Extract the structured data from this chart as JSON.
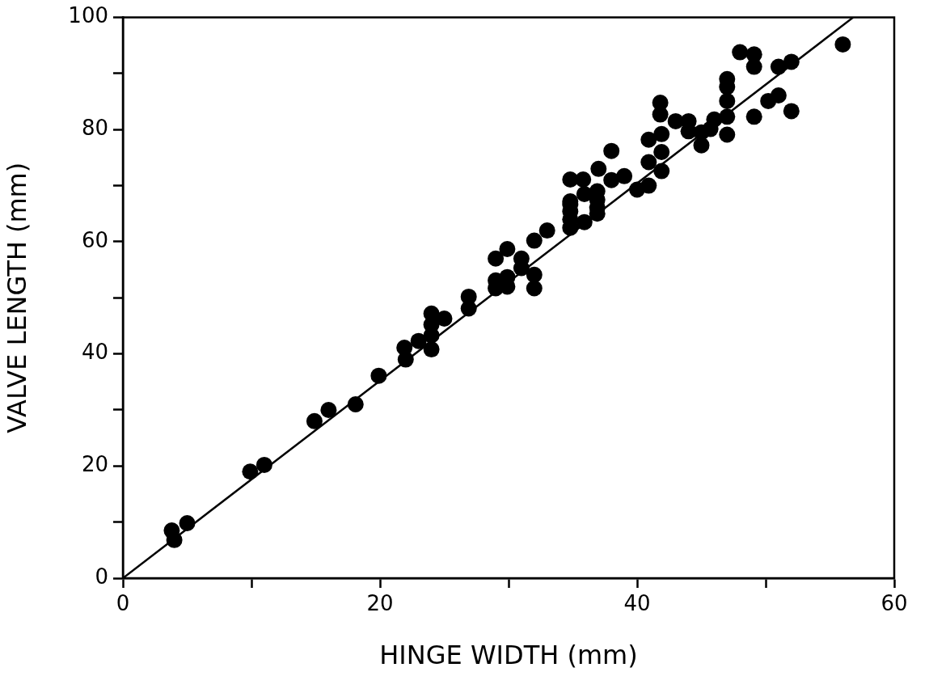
{
  "chart_data": {
    "type": "scatter",
    "xlabel": "HINGE WIDTH (mm)",
    "ylabel": "VALVE LENGTH (mm)",
    "xlim": [
      0,
      60
    ],
    "ylim": [
      0,
      100
    ],
    "xticks": [
      0,
      {
        "value": 10,
        "label": null
      },
      20,
      {
        "value": 30,
        "label": null
      },
      40,
      {
        "value": 50,
        "label": null
      },
      60
    ],
    "yticks": [
      0,
      {
        "value": 10,
        "label": null
      },
      20,
      {
        "value": 30,
        "label": null
      },
      40,
      {
        "value": 50,
        "label": null
      },
      60,
      {
        "value": 70,
        "label": null
      },
      80,
      {
        "value": 90,
        "label": null
      },
      100
    ],
    "grid": false,
    "legend": false,
    "marker": "circle",
    "series": [
      {
        "color": "#000000",
        "x": [
          3.8,
          4.0,
          5.0,
          9.9,
          11.0,
          14.9,
          16.0,
          18.1,
          19.9,
          21.9,
          22.0,
          23.0,
          24.0,
          24.0,
          24.0,
          24.0,
          25.0,
          26.9,
          26.9,
          29.0,
          29.0,
          29.0,
          29.9,
          29.9,
          29.9,
          31.0,
          31.0,
          32.0,
          32.0,
          32.0,
          33.0,
          34.8,
          34.8,
          34.8,
          34.8,
          34.8,
          34.8,
          35.9,
          35.8,
          35.9,
          36.9,
          36.9,
          36.9,
          36.9,
          37.0,
          38.0,
          38.0,
          39.0,
          40.0,
          40.9,
          40.9,
          40.9,
          41.9,
          41.9,
          41.9,
          41.8,
          41.8,
          43.0,
          44.0,
          44.0,
          45.0,
          45.0,
          45.7,
          46.0,
          47.0,
          47.0,
          47.0,
          47.0,
          47.0,
          48.0,
          49.1,
          49.1,
          49.1,
          50.2,
          51.0,
          51.0,
          52.0,
          52.0,
          56.0
        ],
        "values": [
          8.5,
          6.8,
          9.8,
          19.0,
          20.2,
          28.0,
          30.0,
          31.0,
          36.1,
          41.1,
          39.0,
          42.3,
          40.8,
          43.3,
          45.2,
          47.2,
          46.3,
          48.1,
          50.2,
          51.7,
          53.1,
          57.0,
          52.0,
          53.7,
          58.7,
          55.3,
          57.0,
          51.7,
          54.1,
          60.2,
          62.0,
          62.5,
          64.0,
          65.4,
          66.7,
          67.2,
          71.1,
          63.5,
          71.1,
          68.5,
          65.0,
          66.1,
          67.5,
          69.0,
          73.0,
          71.0,
          76.2,
          71.7,
          69.3,
          70.0,
          74.2,
          78.2,
          72.6,
          76.0,
          79.2,
          82.7,
          84.8,
          81.5,
          81.5,
          79.7,
          77.2,
          79.5,
          80.1,
          81.8,
          79.1,
          82.3,
          85.1,
          87.6,
          89.0,
          93.8,
          93.4,
          91.2,
          82.3,
          85.1,
          86.1,
          91.2,
          92.1,
          83.3,
          95.2
        ]
      },
      {
        "type": "line",
        "color": "#000000",
        "x": [
          0,
          56.8
        ],
        "values": [
          0,
          100
        ],
        "marker": "none",
        "line_style": "solid"
      }
    ]
  }
}
